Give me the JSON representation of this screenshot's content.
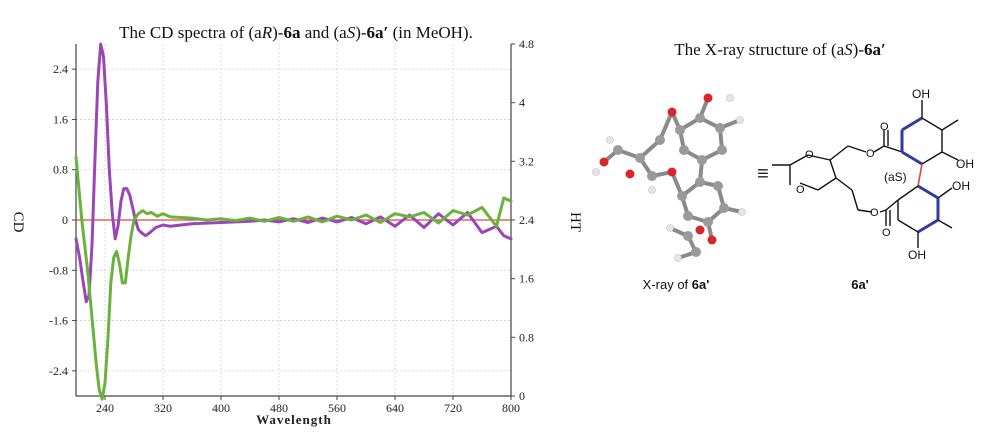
{
  "chart_data": {
    "type": "line",
    "title": "The CD spectra of (aR)-6a and (aS)-6a′ (in MeOH).",
    "xlabel": "Wavelength",
    "ylabel_left": "CD",
    "ylabel_right": "HT",
    "xlim": [
      200,
      800
    ],
    "ylim_left": [
      -2.8,
      2.8
    ],
    "ylim_right": [
      0,
      4.8
    ],
    "x_ticks": [
      "240",
      "320",
      "400",
      "480",
      "560",
      "640",
      "720",
      "800"
    ],
    "y_ticks_left": [
      "2.4",
      "1.6",
      "0.8",
      "0",
      "-0.8",
      "-1.6",
      "-2.4"
    ],
    "y_ticks_right": [
      "4.8",
      "4",
      "3.2",
      "2.4",
      "1.6",
      "0.8",
      "0"
    ],
    "grid": true,
    "series": [
      {
        "color": "#9b45b8",
        "x": [
          200,
          205,
          210,
          214,
          218,
          222,
          226,
          230,
          234,
          238,
          242,
          246,
          250,
          254,
          258,
          262,
          266,
          270,
          274,
          278,
          282,
          286,
          290,
          296,
          302,
          310,
          320,
          330,
          345,
          360,
          380,
          400,
          420,
          440,
          460,
          480,
          500,
          520,
          540,
          560,
          580,
          600,
          620,
          640,
          660,
          680,
          700,
          720,
          740,
          760,
          780,
          790,
          800
        ],
        "y": [
          -0.3,
          -0.6,
          -1.0,
          -1.3,
          -1.2,
          -0.4,
          0.9,
          2.2,
          2.8,
          2.6,
          1.8,
          0.8,
          0.1,
          -0.3,
          -0.1,
          0.3,
          0.5,
          0.5,
          0.4,
          0.2,
          0.0,
          -0.15,
          -0.2,
          -0.25,
          -0.2,
          -0.12,
          -0.08,
          -0.1,
          -0.08,
          -0.06,
          -0.05,
          -0.04,
          -0.03,
          -0.02,
          0.0,
          -0.03,
          0.02,
          -0.04,
          0.03,
          -0.03,
          0.04,
          -0.06,
          0.05,
          -0.1,
          0.08,
          -0.12,
          0.1,
          -0.08,
          0.12,
          -0.2,
          -0.1,
          -0.25,
          -0.3
        ]
      },
      {
        "color": "#6ab23c",
        "x": [
          200,
          204,
          208,
          212,
          216,
          220,
          224,
          228,
          232,
          236,
          240,
          244,
          248,
          252,
          256,
          260,
          264,
          268,
          272,
          276,
          280,
          286,
          292,
          298,
          304,
          312,
          320,
          330,
          345,
          360,
          380,
          400,
          420,
          440,
          460,
          480,
          500,
          520,
          540,
          560,
          580,
          600,
          620,
          640,
          660,
          680,
          700,
          720,
          740,
          760,
          780,
          790,
          800
        ],
        "y": [
          1.0,
          0.5,
          0.0,
          -0.4,
          -0.8,
          -1.3,
          -1.8,
          -2.3,
          -2.7,
          -2.85,
          -2.6,
          -1.9,
          -1.0,
          -0.6,
          -0.5,
          -0.7,
          -1.0,
          -1.0,
          -0.6,
          -0.25,
          0.0,
          0.1,
          0.15,
          0.1,
          0.12,
          0.06,
          0.1,
          0.05,
          0.04,
          0.03,
          0.0,
          0.02,
          -0.01,
          0.03,
          -0.02,
          0.04,
          -0.02,
          0.05,
          -0.03,
          0.06,
          0.0,
          0.08,
          -0.04,
          0.1,
          0.05,
          0.12,
          -0.05,
          0.15,
          0.08,
          0.2,
          -0.1,
          0.35,
          0.3
        ]
      }
    ],
    "baseline_color": "#e0453a"
  },
  "right_panel": {
    "title": "The X-ray structure of (aS)-6a′",
    "xray_caption": "X-ray of 6a'",
    "compound_label": "6a'",
    "equiv_symbol": "≡",
    "atom_labels": {
      "oh_top": "OH",
      "oh_right": "OH",
      "oh_right2": "OH",
      "oh_bottom": "OH",
      "as_label": "(aS)",
      "o1": "O",
      "o2": "O",
      "o3": "O",
      "o4": "O",
      "o5": "O",
      "o6": "O"
    }
  }
}
